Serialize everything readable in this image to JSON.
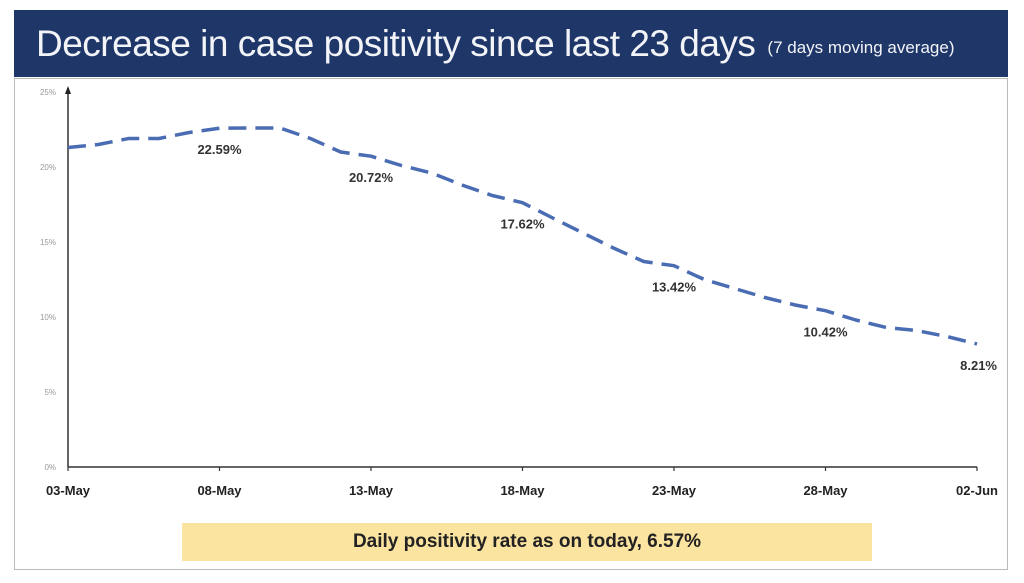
{
  "chart_data": {
    "type": "line",
    "title": "Decrease in case positivity since last 23 days",
    "subtitle": "(7 days moving average)",
    "xlabel": "",
    "ylabel": "",
    "x": [
      "03-May",
      "04-May",
      "05-May",
      "06-May",
      "07-May",
      "08-May",
      "09-May",
      "10-May",
      "11-May",
      "12-May",
      "13-May",
      "14-May",
      "15-May",
      "16-May",
      "17-May",
      "18-May",
      "19-May",
      "20-May",
      "21-May",
      "22-May",
      "23-May",
      "24-May",
      "25-May",
      "26-May",
      "27-May",
      "28-May",
      "29-May",
      "30-May",
      "31-May",
      "01-Jun",
      "02-Jun"
    ],
    "values": [
      21.3,
      21.5,
      21.9,
      21.9,
      22.3,
      22.59,
      22.6,
      22.6,
      21.9,
      21.0,
      20.72,
      20.1,
      19.6,
      18.8,
      18.1,
      17.62,
      16.6,
      15.6,
      14.6,
      13.7,
      13.42,
      12.5,
      11.9,
      11.3,
      10.8,
      10.42,
      9.8,
      9.3,
      9.1,
      8.7,
      8.21
    ],
    "x_tick_labels": [
      "03-May",
      "08-May",
      "13-May",
      "18-May",
      "23-May",
      "28-May",
      "02-Jun"
    ],
    "y_tick_labels": [
      "0%",
      "5%",
      "10%",
      "15%",
      "20%",
      "25%"
    ],
    "ylim": [
      0,
      25
    ],
    "grid": false,
    "line_style": "dashed",
    "line_color": "#4a6cb3",
    "data_labels": [
      {
        "x": "08-May",
        "text": "22.59%"
      },
      {
        "x": "13-May",
        "text": "20.72%"
      },
      {
        "x": "18-May",
        "text": "17.62%"
      },
      {
        "x": "23-May",
        "text": "13.42%"
      },
      {
        "x": "28-May",
        "text": "10.42%"
      },
      {
        "x": "02-Jun",
        "text": "8.21%"
      }
    ]
  },
  "footer": {
    "text": "Daily positivity rate as on today, 6.57%"
  },
  "colors": {
    "banner": "#1f3669",
    "footer": "#fbe3a0"
  }
}
